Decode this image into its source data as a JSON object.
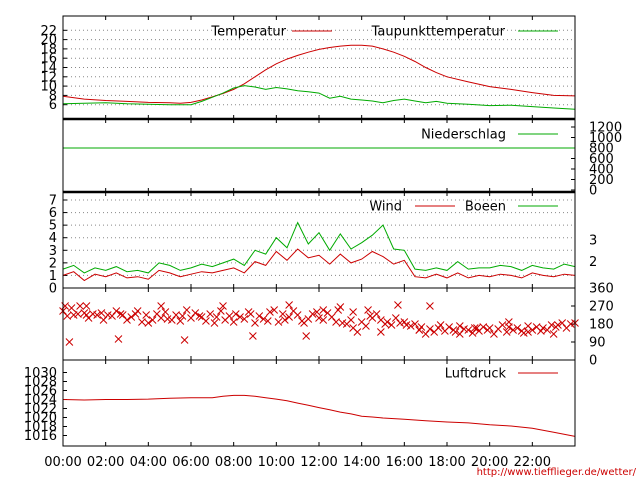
{
  "colors": {
    "temperature": "#cc0000",
    "dewpoint": "#00aa00",
    "precipitation": "#00aa00",
    "wind": "#cc0000",
    "gusts": "#00aa00",
    "direction": "#cc0000",
    "pressure": "#cc0000",
    "grid": "#888888",
    "frame": "#000000"
  },
  "source_url": "http://www.tiefflieger.de/wetter/",
  "chart_data": [
    {
      "id": "temperature",
      "type": "line",
      "x_unit": "hour",
      "xlim": [
        0,
        24
      ],
      "ylim": [
        4,
        24
      ],
      "yticks": [
        6,
        8,
        10,
        12,
        14,
        16,
        18,
        20,
        22
      ],
      "grid": true,
      "legend": "top-right",
      "series": [
        {
          "name": "Temperatur",
          "key": "temperature",
          "x": [
            0,
            1,
            2,
            3,
            4,
            5,
            5.5,
            6,
            6.5,
            7,
            7.5,
            8,
            8.5,
            9,
            9.5,
            10,
            10.5,
            11,
            11.5,
            12,
            12.5,
            13,
            13.5,
            14,
            14.5,
            15,
            15.5,
            16,
            16.5,
            17,
            17.5,
            18,
            19,
            20,
            21,
            22,
            23,
            24
          ],
          "values": [
            7.8,
            7.2,
            6.9,
            6.7,
            6.5,
            6.4,
            6.3,
            6.5,
            7.0,
            7.7,
            8.4,
            9.3,
            10.5,
            12.0,
            13.5,
            14.8,
            15.8,
            16.6,
            17.3,
            17.9,
            18.3,
            18.6,
            18.8,
            18.8,
            18.6,
            18.0,
            17.3,
            16.4,
            15.3,
            14.0,
            12.9,
            12.0,
            10.9,
            9.9,
            9.3,
            8.6,
            8.0,
            7.9
          ]
        },
        {
          "name": "Taupunkttemperatur",
          "key": "dewpoint",
          "x": [
            0,
            1,
            2,
            3,
            4,
            5,
            6,
            6.5,
            7,
            7.5,
            8,
            8.5,
            9,
            9.5,
            10,
            10.5,
            11,
            11.5,
            12,
            12.5,
            13,
            13.5,
            14,
            14.5,
            15,
            15.5,
            16,
            16.5,
            17,
            17.5,
            18,
            19,
            20,
            21,
            22,
            23,
            24
          ],
          "values": [
            6.2,
            6.3,
            6.4,
            6.2,
            6.1,
            6.0,
            6.0,
            6.7,
            7.6,
            8.5,
            9.6,
            10.1,
            9.8,
            9.3,
            9.7,
            9.4,
            9.0,
            8.8,
            8.5,
            7.4,
            7.8,
            7.2,
            7.0,
            6.8,
            6.4,
            6.9,
            7.2,
            6.8,
            6.4,
            6.7,
            6.3,
            6.1,
            5.8,
            5.9,
            5.6,
            5.3,
            5.0
          ]
        }
      ]
    },
    {
      "id": "precipitation",
      "type": "line",
      "x_unit": "hour",
      "xlim": [
        0,
        24
      ],
      "ylim": [
        0,
        1200
      ],
      "yticks": [
        0,
        200,
        400,
        600,
        800,
        1000,
        1200
      ],
      "legend": "top-right",
      "series": [
        {
          "name": "Niederschlag",
          "key": "precipitation",
          "x": [
            0,
            24
          ],
          "values": [
            800,
            800
          ]
        }
      ]
    },
    {
      "id": "wind",
      "type": "line",
      "x_unit": "hour",
      "xlim": [
        0,
        24
      ],
      "ylim": [
        0,
        7
      ],
      "yticks": [
        0,
        1,
        2,
        3,
        4,
        5,
        6,
        7
      ],
      "right_labels": [
        {
          "text": "3",
          "y": 3.8
        },
        {
          "text": "2",
          "y": 2.1
        }
      ],
      "grid": true,
      "legend": "top-right",
      "series": [
        {
          "name": "Wind",
          "key": "wind",
          "x": [
            0,
            0.5,
            1,
            1.5,
            2,
            2.5,
            3,
            3.5,
            4,
            4.5,
            5,
            5.5,
            6,
            6.5,
            7,
            7.5,
            8,
            8.5,
            9,
            9.5,
            10,
            10.5,
            11,
            11.5,
            12,
            12.5,
            13,
            13.5,
            14,
            14.5,
            15,
            15.5,
            16,
            16.5,
            17,
            17.5,
            18,
            18.5,
            19,
            19.5,
            20,
            20.5,
            21,
            21.5,
            22,
            22.5,
            23,
            23.5,
            24
          ],
          "values": [
            1.0,
            1.3,
            0.6,
            1.1,
            0.9,
            1.2,
            0.8,
            0.9,
            0.7,
            1.4,
            1.2,
            0.9,
            1.1,
            1.3,
            1.2,
            1.4,
            1.6,
            1.2,
            2.1,
            1.8,
            2.9,
            2.2,
            3.1,
            2.4,
            2.6,
            1.9,
            2.7,
            2.0,
            2.3,
            2.9,
            2.5,
            1.9,
            2.2,
            0.9,
            0.8,
            1.1,
            0.8,
            1.2,
            0.8,
            1.0,
            0.9,
            1.1,
            1.0,
            0.8,
            1.2,
            1.0,
            0.9,
            1.1,
            1.0
          ]
        },
        {
          "name": "Boeen",
          "key": "gusts",
          "x": [
            0,
            0.5,
            1,
            1.5,
            2,
            2.5,
            3,
            3.5,
            4,
            4.5,
            5,
            5.5,
            6,
            6.5,
            7,
            7.5,
            8,
            8.5,
            9,
            9.5,
            10,
            10.5,
            11,
            11.5,
            12,
            12.5,
            13,
            13.5,
            14,
            14.5,
            15,
            15.5,
            16,
            16.5,
            17,
            17.5,
            18,
            18.5,
            19,
            19.5,
            20,
            20.5,
            21,
            21.5,
            22,
            22.5,
            23,
            23.5,
            24
          ],
          "values": [
            1.5,
            1.8,
            1.2,
            1.6,
            1.4,
            1.7,
            1.3,
            1.4,
            1.2,
            2.0,
            1.8,
            1.4,
            1.6,
            1.9,
            1.7,
            2.0,
            2.3,
            1.8,
            3.0,
            2.7,
            4.0,
            3.2,
            5.2,
            3.5,
            4.4,
            3.0,
            4.3,
            3.1,
            3.6,
            4.2,
            5.0,
            3.1,
            3.0,
            1.5,
            1.4,
            1.6,
            1.4,
            2.1,
            1.5,
            1.6,
            1.6,
            1.8,
            1.7,
            1.4,
            1.8,
            1.6,
            1.5,
            1.9,
            1.7
          ]
        }
      ]
    },
    {
      "id": "direction",
      "type": "scatter",
      "x_unit": "hour",
      "xlim": [
        0,
        24
      ],
      "ylim": [
        0,
        360
      ],
      "yticks": [
        0,
        90,
        180,
        270,
        360
      ],
      "marker": "x",
      "series": [
        {
          "name": "",
          "key": "direction",
          "x": [
            0.0,
            0.1,
            0.2,
            0.4,
            0.5,
            0.7,
            0.8,
            1.0,
            1.1,
            1.2,
            1.4,
            1.6,
            1.8,
            1.9,
            2.1,
            2.3,
            2.5,
            2.7,
            2.8,
            3.0,
            3.2,
            3.4,
            3.5,
            3.7,
            3.9,
            4.0,
            4.2,
            4.4,
            4.6,
            4.8,
            4.9,
            5.1,
            5.3,
            5.5,
            5.6,
            5.8,
            6.0,
            6.2,
            6.4,
            6.5,
            6.7,
            6.9,
            7.1,
            7.2,
            7.4,
            7.6,
            7.8,
            8.0,
            8.1,
            8.3,
            8.5,
            8.7,
            8.8,
            9.0,
            9.2,
            9.4,
            9.6,
            9.7,
            9.9,
            10.1,
            10.3,
            10.4,
            10.6,
            10.8,
            11.0,
            11.2,
            11.3,
            11.5,
            11.7,
            11.9,
            12.0,
            12.2,
            12.4,
            12.6,
            12.8,
            12.9,
            13.1,
            13.3,
            13.5,
            13.6,
            13.8,
            14.0,
            14.2,
            14.4,
            14.5,
            14.7,
            14.9,
            15.1,
            15.2,
            15.4,
            15.6,
            15.8,
            16.0,
            16.1,
            16.3,
            16.5,
            16.7,
            16.8,
            17.0,
            17.2,
            17.4,
            17.6,
            17.7,
            17.9,
            18.1,
            18.3,
            18.4,
            18.6,
            18.8,
            19.0,
            19.2,
            19.3,
            19.5,
            19.7,
            19.9,
            20.0,
            20.2,
            20.4,
            20.6,
            20.8,
            20.9,
            21.1,
            21.3,
            21.5,
            21.6,
            21.8,
            22.0,
            22.2,
            22.4,
            22.5,
            22.7,
            22.9,
            23.1,
            23.2,
            23.4,
            23.6,
            23.8,
            24.0,
            13.0,
            13.6,
            14.3,
            15.7,
            1.1,
            4.6,
            7.5,
            10.6,
            12.2,
            17.2,
            19.4,
            20.9,
            0.3,
            2.6,
            5.7,
            8.9,
            11.4,
            14.9,
            16.7,
            18.6,
            21.8,
            23.0
          ],
          "values": [
            245,
            270,
            220,
            260,
            225,
            230,
            270,
            235,
            225,
            210,
            230,
            225,
            235,
            200,
            225,
            220,
            245,
            230,
            225,
            200,
            215,
            230,
            245,
            190,
            225,
            185,
            200,
            230,
            210,
            240,
            205,
            200,
            225,
            195,
            220,
            250,
            210,
            235,
            220,
            215,
            195,
            230,
            185,
            215,
            245,
            200,
            220,
            190,
            230,
            215,
            205,
            240,
            230,
            185,
            220,
            205,
            195,
            240,
            250,
            190,
            230,
            200,
            215,
            245,
            225,
            195,
            185,
            205,
            230,
            240,
            210,
            200,
            235,
            215,
            190,
            250,
            185,
            180,
            200,
            160,
            140,
            190,
            170,
            220,
            210,
            230,
            200,
            180,
            190,
            175,
            210,
            185,
            190,
            175,
            170,
            180,
            150,
            165,
            130,
            155,
            140,
            160,
            175,
            145,
            165,
            150,
            140,
            170,
            155,
            150,
            135,
            160,
            145,
            165,
            150,
            160,
            130,
            155,
            175,
            140,
            165,
            150,
            160,
            145,
            135,
            170,
            150,
            165,
            145,
            160,
            150,
            175,
            165,
            175,
            185,
            160,
            180,
            185,
            265,
            240,
            250,
            275,
            270,
            270,
            270,
            275,
            250,
            270,
            160,
            190,
            90,
            105,
            100,
            120,
            120,
            140,
            150,
            130,
            140,
            130
          ]
        }
      ]
    },
    {
      "id": "pressure",
      "type": "line",
      "x_unit": "hour",
      "xlim": [
        0,
        24
      ],
      "ylim": [
        1015,
        1031
      ],
      "yticks": [
        1016,
        1018,
        1020,
        1022,
        1024,
        1026,
        1028,
        1030
      ],
      "legend": "top-right",
      "series": [
        {
          "name": "Luftdruck",
          "key": "pressure",
          "x": [
            0,
            1,
            2,
            3,
            4,
            5,
            6,
            7,
            7.5,
            8,
            8.5,
            9,
            9.5,
            10,
            10.5,
            11,
            11.5,
            12,
            12.5,
            13,
            13.5,
            14,
            14.5,
            15,
            16,
            17,
            18,
            19,
            20,
            21,
            22,
            23,
            24
          ],
          "values": [
            1024.0,
            1023.9,
            1024.0,
            1024.0,
            1024.1,
            1024.3,
            1024.4,
            1024.4,
            1024.7,
            1024.9,
            1024.9,
            1024.7,
            1024.4,
            1024.1,
            1023.7,
            1023.2,
            1022.7,
            1022.2,
            1021.7,
            1021.2,
            1020.8,
            1020.3,
            1020.1,
            1019.9,
            1019.6,
            1019.3,
            1019.0,
            1018.8,
            1018.4,
            1018.1,
            1017.6,
            1016.7,
            1015.8
          ]
        }
      ]
    }
  ],
  "x_axis": {
    "ticks": [
      0,
      2,
      4,
      6,
      8,
      10,
      12,
      14,
      16,
      18,
      20,
      22
    ],
    "labels": [
      "00:00",
      "02:00",
      "04:00",
      "06:00",
      "08:00",
      "10:00",
      "12:00",
      "14:00",
      "16:00",
      "18:00",
      "20:00",
      "22:00"
    ]
  }
}
